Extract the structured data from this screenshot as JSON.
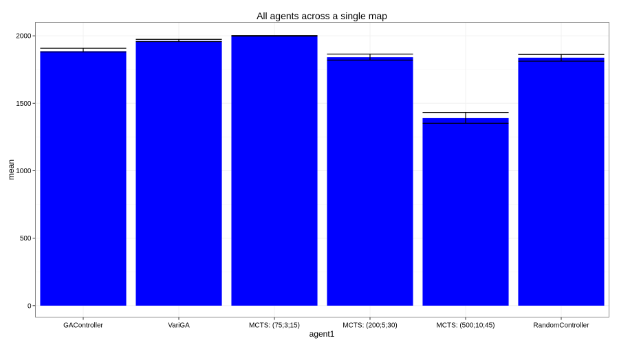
{
  "chart_data": {
    "type": "bar",
    "title": "All agents across a single map",
    "xlabel": "agent1",
    "ylabel": "mean",
    "categories": [
      "GAController",
      "VariGA",
      "MCTS: (75;3;15)",
      "MCTS: (200;5;30)",
      "MCTS: (500;10;45)",
      "RandomController"
    ],
    "values": [
      1886,
      1962,
      2000,
      1842,
      1390,
      1838
    ],
    "error_low": [
      1880,
      1957,
      1998,
      1820,
      1352,
      1812
    ],
    "error_high": [
      1908,
      1974,
      2002,
      1864,
      1432,
      1862
    ],
    "ylim": [
      -85,
      2100
    ],
    "yticks": [
      0,
      500,
      1000,
      1500,
      2000
    ],
    "grid": true,
    "legend": "none",
    "colors": {
      "bar": "#0000ff",
      "panel_border": "#888888",
      "grid_major": "#f0f0f0",
      "grid_minor": "#fafafa",
      "error_bar": "#000000"
    }
  }
}
